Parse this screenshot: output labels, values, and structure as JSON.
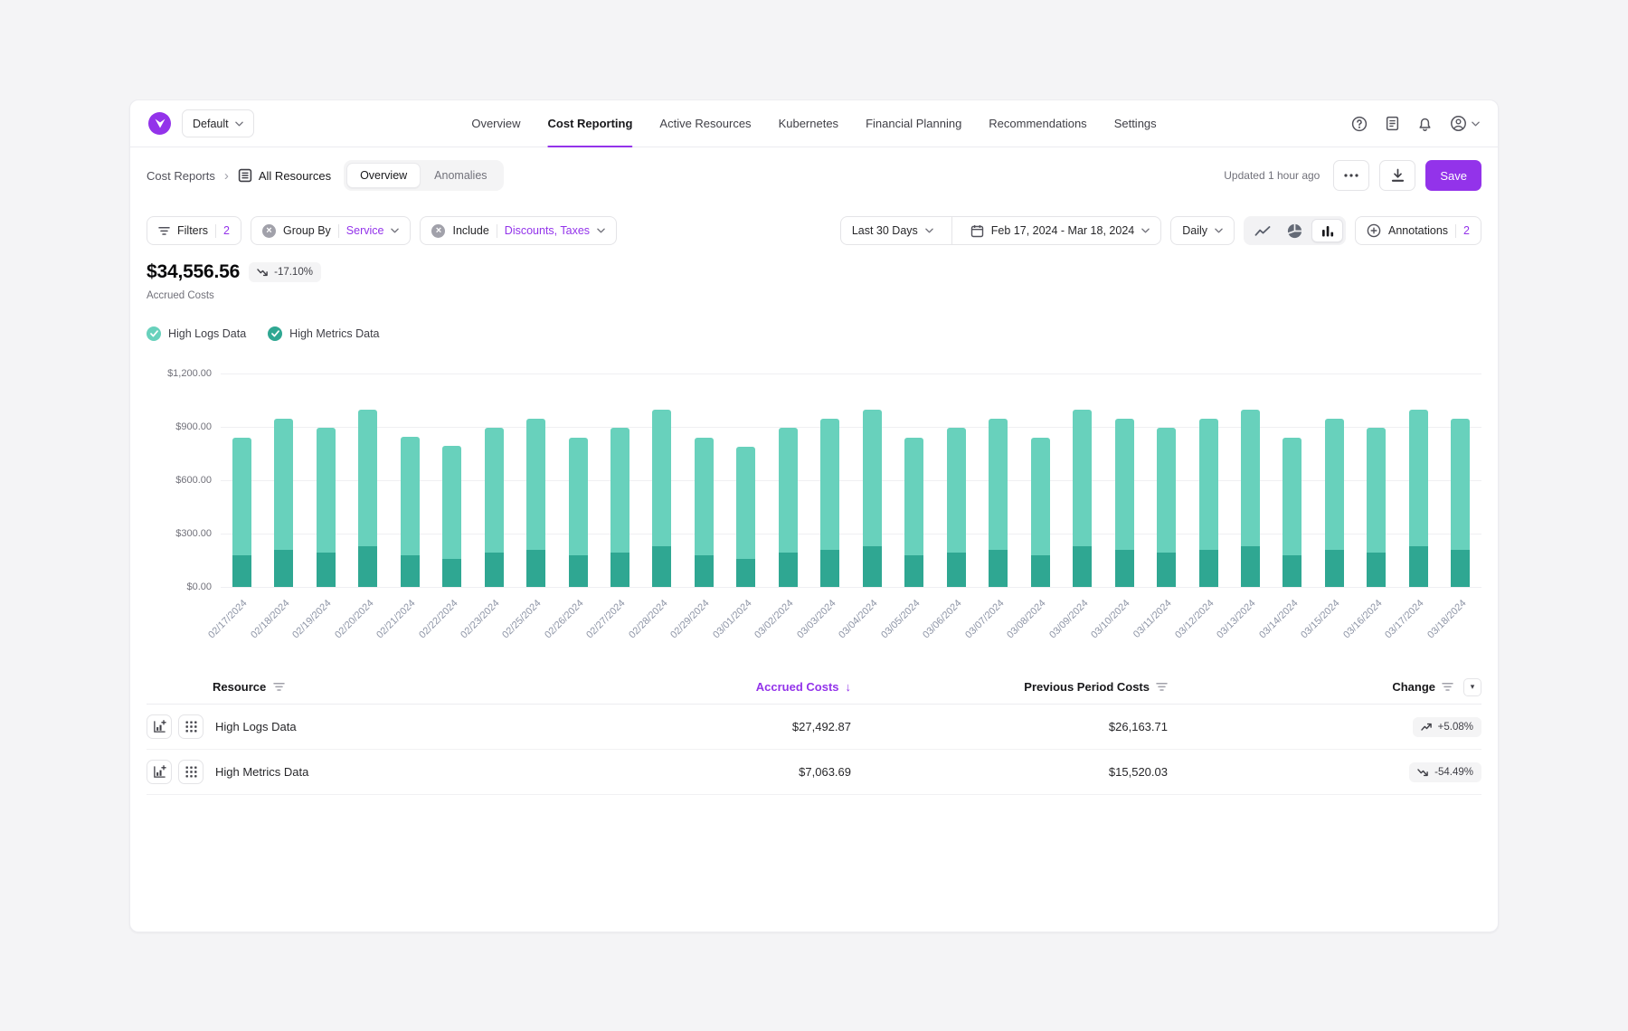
{
  "colors": {
    "accent": "#9333ea",
    "bar_light": "#68d1bc",
    "bar_dark": "#2fa792",
    "badge_bg": "#f4f4f5"
  },
  "nav": {
    "workspace": "Default",
    "items": [
      "Overview",
      "Cost Reporting",
      "Active Resources",
      "Kubernetes",
      "Financial Planning",
      "Recommendations",
      "Settings"
    ],
    "active_item": "Cost Reporting"
  },
  "toolbar": {
    "breadcrumb_root": "Cost Reports",
    "breadcrumb_current": "All Resources",
    "view_tabs": [
      "Overview",
      "Anomalies"
    ],
    "active_view": "Overview",
    "updated_text": "Updated 1 hour ago",
    "save_label": "Save"
  },
  "filter_bar": {
    "filters_label": "Filters",
    "filters_count": "2",
    "group_by_label": "Group By",
    "group_by_value": "Service",
    "include_label": "Include",
    "include_value": "Discounts, Taxes",
    "period": "Last 30 Days",
    "date_range": "Feb 17, 2024 - Mar 18, 2024",
    "granularity": "Daily",
    "annotations_label": "Annotations",
    "annotations_count": "2"
  },
  "kpi": {
    "total": "$34,556.56",
    "change": "-17.10%",
    "label": "Accrued Costs"
  },
  "legend": [
    {
      "label": "High Logs Data",
      "color": "#68d1bc"
    },
    {
      "label": "High Metrics Data",
      "color": "#2fa792"
    }
  ],
  "chart_data": {
    "type": "bar",
    "stacked": true,
    "title": "Accrued Costs by Service, Daily",
    "xlabel": "",
    "ylabel": "",
    "ylim": [
      0,
      1200
    ],
    "grid": true,
    "legend_position": "top-left",
    "y_ticks": [
      "$1,200.00",
      "$900.00",
      "$600.00",
      "$300.00",
      "$0.00"
    ],
    "categories": [
      "02/17/2024",
      "02/18/2024",
      "02/19/2024",
      "02/20/2024",
      "02/21/2024",
      "02/22/2024",
      "02/23/2024",
      "02/25/2024",
      "02/26/2024",
      "02/27/2024",
      "02/28/2024",
      "02/29/2024",
      "03/01/2024",
      "03/02/2024",
      "03/03/2024",
      "03/04/2024",
      "03/05/2024",
      "03/06/2024",
      "03/07/2024",
      "03/08/2024",
      "03/09/2024",
      "03/10/2024",
      "03/11/2024",
      "03/12/2024",
      "03/13/2024",
      "03/14/2024",
      "03/15/2024",
      "03/16/2024",
      "03/17/2024",
      "03/18/2024"
    ],
    "series": [
      {
        "name": "High Metrics Data",
        "color": "#2fa792",
        "values": [
          179,
          208,
          191,
          230,
          179,
          157,
          191,
          208,
          179,
          191,
          230,
          179,
          157,
          191,
          208,
          230,
          179,
          191,
          208,
          179,
          230,
          208,
          191,
          208,
          230,
          179,
          208,
          191,
          230,
          208
        ]
      },
      {
        "name": "High Logs Data",
        "color": "#68d1bc",
        "values": [
          661,
          736,
          702,
          765,
          663,
          634,
          702,
          736,
          661,
          702,
          765,
          661,
          632,
          702,
          736,
          765,
          661,
          702,
          736,
          661,
          765,
          736,
          702,
          736,
          765,
          661,
          736,
          702,
          765,
          736
        ]
      }
    ]
  },
  "table": {
    "headers": {
      "resource": "Resource",
      "accrued": "Accrued Costs",
      "previous": "Previous Period Costs",
      "change": "Change"
    },
    "sort": {
      "column": "Accrued Costs",
      "direction": "desc"
    },
    "rows": [
      {
        "name": "High Logs Data",
        "accrued": "$27,492.87",
        "previous": "$26,163.71",
        "change": "+5.08%",
        "trend": "up"
      },
      {
        "name": "High Metrics Data",
        "accrued": "$7,063.69",
        "previous": "$15,520.03",
        "change": "-54.49%",
        "trend": "down"
      }
    ]
  }
}
